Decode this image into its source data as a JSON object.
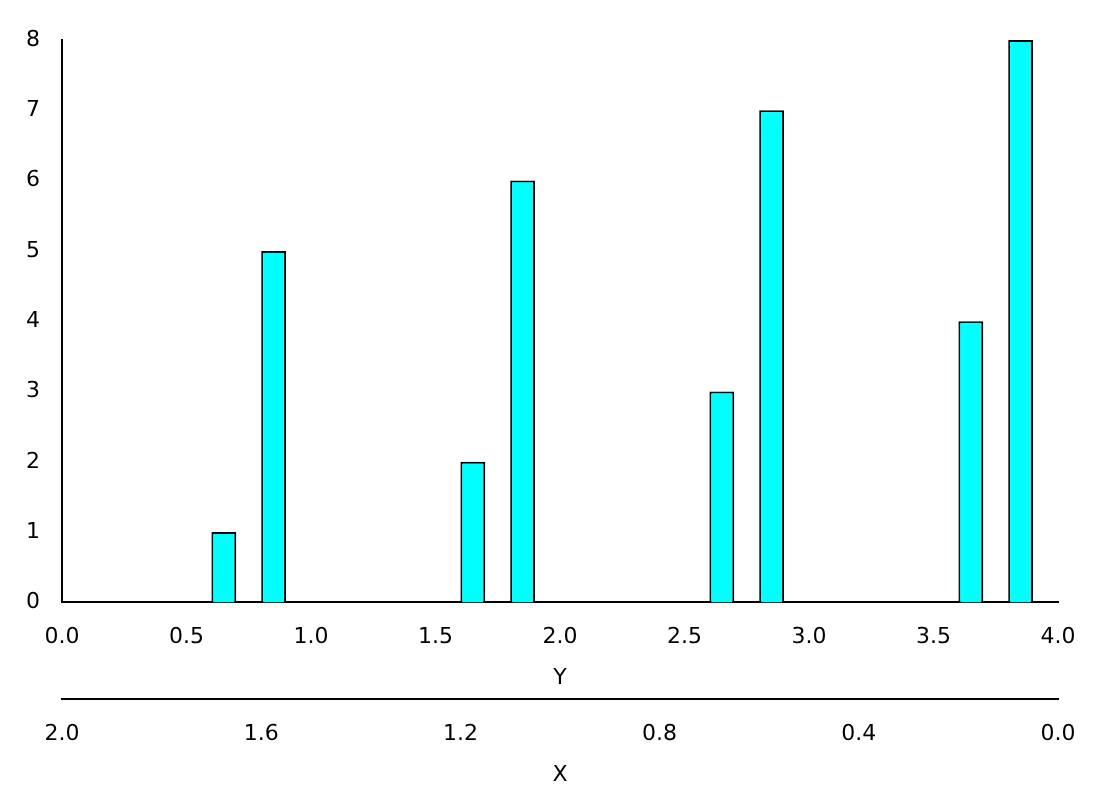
{
  "chart_data": {
    "type": "bar",
    "xlabel": "Y",
    "x2label": "X",
    "x": [
      0.75,
      1.75,
      2.75,
      3.75
    ],
    "series": [
      {
        "color": "#00ffff",
        "values": [
          1,
          2,
          3,
          4
        ]
      },
      {
        "color": "#00ffff",
        "values": [
          5,
          6,
          7,
          8
        ]
      }
    ],
    "xlim": [
      0,
      4
    ],
    "xticks": [
      {
        "value": 0,
        "label": "0.0"
      },
      {
        "value": 0.5,
        "label": "0.5"
      },
      {
        "value": 1,
        "label": "1.0"
      },
      {
        "value": 1.5,
        "label": "1.5"
      },
      {
        "value": 2,
        "label": "2.0"
      },
      {
        "value": 2.5,
        "label": "2.5"
      },
      {
        "value": 3,
        "label": "3.0"
      },
      {
        "value": 3.5,
        "label": "3.5"
      },
      {
        "value": 4,
        "label": "4.0"
      }
    ],
    "x2lim": [
      2,
      0
    ],
    "x2ticks": [
      {
        "value": 2,
        "label": "2.0"
      },
      {
        "value": 1.6,
        "label": "1.6"
      },
      {
        "value": 1.2,
        "label": "1.2"
      },
      {
        "value": 0.8,
        "label": "0.8"
      },
      {
        "value": 0.4,
        "label": "0.4"
      },
      {
        "value": 0,
        "label": "0.0"
      }
    ],
    "ylim": [
      0,
      8
    ],
    "yticks": [
      0,
      1,
      2,
      3,
      4,
      5,
      6,
      7,
      8
    ],
    "grid": false,
    "legend": false
  }
}
